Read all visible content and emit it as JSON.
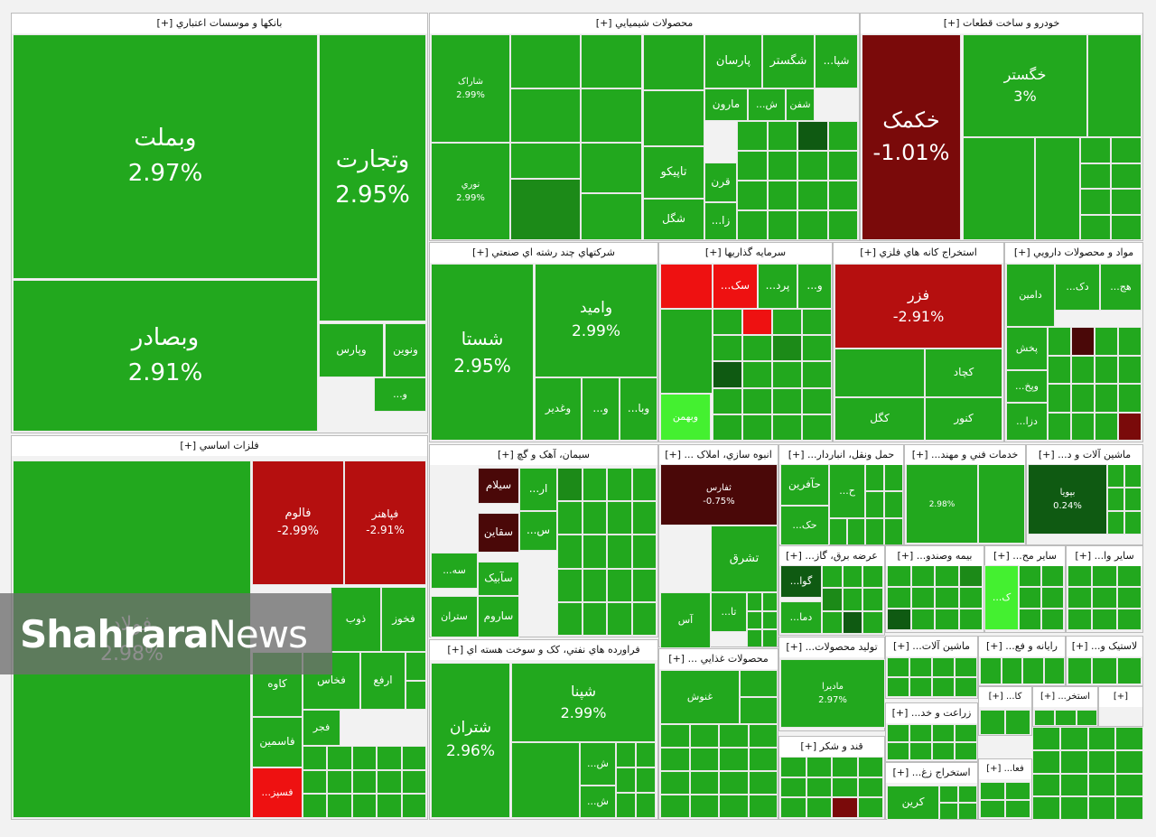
{
  "chart_data": {
    "type": "treemap",
    "colors": {
      "up": "#22a81e",
      "up_mid": "#1c8a18",
      "up_dark": "#0f5a12",
      "up_bright": "#44f030",
      "down": "#b50f0f",
      "down_dark": "#7a0a0a",
      "down_deep": "#4a0808",
      "down_bright": "#ee1111"
    },
    "sectors": [
      {
        "title": "بانکها و موسسات اعتباري [+]",
        "tiles": [
          {
            "name": "وبملت",
            "pct": "2.97%",
            "value": 2.97
          },
          {
            "name": "وتجارت",
            "pct": "2.95%",
            "value": 2.95
          },
          {
            "name": "وبصادر",
            "pct": "2.91%",
            "value": 2.91
          },
          {
            "name": "ونوين",
            "pct": ""
          },
          {
            "name": "وپارس",
            "pct": ""
          },
          {
            "name": "و...",
            "pct": ""
          }
        ]
      },
      {
        "title": "محصولات شيميايي [+]",
        "tiles": [
          {
            "name": "شاراک",
            "pct": "2.99%",
            "value": 2.99
          },
          {
            "name": "نوري",
            "pct": "2.99%",
            "value": 2.99
          },
          {
            "name": "پارسان",
            "pct": ""
          },
          {
            "name": "شگستر",
            "pct": ""
          },
          {
            "name": "شپا...",
            "pct": ""
          },
          {
            "name": "مارون",
            "pct": ""
          },
          {
            "name": "ش...",
            "pct": ""
          },
          {
            "name": "شفن",
            "pct": ""
          },
          {
            "name": "تاپيکو",
            "pct": ""
          },
          {
            "name": "قرن",
            "pct": ""
          },
          {
            "name": "شگل",
            "pct": ""
          },
          {
            "name": "زا...",
            "pct": ""
          }
        ]
      },
      {
        "title": "خودرو و ساخت قطعات [+]",
        "tiles": [
          {
            "name": "خکمک",
            "pct": "-1.01%",
            "value": -1.01
          },
          {
            "name": "خگستر",
            "pct": "3%",
            "value": 3
          }
        ]
      },
      {
        "title": "شرکتهاي چند رشته اي صنعتي [+]",
        "tiles": [
          {
            "name": "شستا",
            "pct": "2.95%",
            "value": 2.95
          },
          {
            "name": "واميد",
            "pct": "2.99%",
            "value": 2.99
          },
          {
            "name": "وغدير",
            "pct": ""
          },
          {
            "name": "و...",
            "pct": ""
          },
          {
            "name": "وبا...",
            "pct": ""
          }
        ]
      },
      {
        "title": "سرمايه گذاريها [+]",
        "tiles": [
          {
            "name": "سک...",
            "pct": ""
          },
          {
            "name": "پرد...",
            "pct": ""
          },
          {
            "name": "و...",
            "pct": ""
          },
          {
            "name": "وبهمن",
            "pct": ""
          }
        ]
      },
      {
        "title": "استخراج کانه هاي فلزي [+]",
        "tiles": [
          {
            "name": "فزر",
            "pct": "-2.91%",
            "value": -2.91
          },
          {
            "name": "کچاد",
            "pct": ""
          },
          {
            "name": "کنور",
            "pct": ""
          },
          {
            "name": "کگل",
            "pct": ""
          }
        ]
      },
      {
        "title": "مواد و محصولات دارويي [+]",
        "tiles": [
          {
            "name": "دامين",
            "pct": ""
          },
          {
            "name": "دک...",
            "pct": ""
          },
          {
            "name": "هج...",
            "pct": ""
          },
          {
            "name": "پخش",
            "pct": ""
          },
          {
            "name": "وپخ...",
            "pct": ""
          },
          {
            "name": "دزا...",
            "pct": ""
          }
        ]
      },
      {
        "title": "فلزات اساسي [+]",
        "tiles": [
          {
            "name": "فولاد",
            "pct": "2.98%",
            "value": 2.98
          },
          {
            "name": "فالوم",
            "pct": "-2.99%",
            "value": -2.99
          },
          {
            "name": "فپاهنر",
            "pct": "-2.91%",
            "value": -2.91
          },
          {
            "name": "ذوب",
            "pct": ""
          },
          {
            "name": "فخوز",
            "pct": ""
          },
          {
            "name": "کاوه",
            "pct": ""
          },
          {
            "name": "فخاس",
            "pct": ""
          },
          {
            "name": "ارفع",
            "pct": ""
          },
          {
            "name": "فاسمين",
            "pct": ""
          },
          {
            "name": "فجر",
            "pct": ""
          },
          {
            "name": "فسپز...",
            "pct": ""
          }
        ]
      },
      {
        "title": "سيمان، آهک و گچ [+]",
        "tiles": [
          {
            "name": "سيلام",
            "pct": ""
          },
          {
            "name": "ار...",
            "pct": ""
          },
          {
            "name": "سقاين",
            "pct": ""
          },
          {
            "name": "س...",
            "pct": ""
          },
          {
            "name": "سه...",
            "pct": ""
          },
          {
            "name": "سآبيک",
            "pct": ""
          },
          {
            "name": "ستران",
            "pct": ""
          },
          {
            "name": "ساروم",
            "pct": ""
          }
        ]
      },
      {
        "title": "انبوه سازي، املاک ... [+]",
        "tiles": [
          {
            "name": "ثفارس",
            "pct": "-0.75%",
            "value": -0.75
          },
          {
            "name": "تشرق",
            "pct": ""
          },
          {
            "name": "آس",
            "pct": ""
          },
          {
            "name": "تا...",
            "pct": ""
          }
        ]
      },
      {
        "title": "حمل ونقل، انباردار... [+]",
        "tiles": [
          {
            "name": "حآفرين",
            "pct": ""
          },
          {
            "name": "ح...",
            "pct": ""
          },
          {
            "name": "حک...",
            "pct": ""
          }
        ]
      },
      {
        "title": "خدمات فني و مهند... [+]",
        "tiles": [
          {
            "name": "",
            "pct": "2.98%",
            "value": 2.98
          }
        ]
      },
      {
        "title": "ماشين آلات و د... [+]",
        "tiles": [
          {
            "name": "بپويا",
            "pct": "0.24%",
            "value": 0.24
          }
        ]
      },
      {
        "title": "عرضه برق، گاز... [+]",
        "tiles": [
          {
            "name": "گوا...",
            "pct": ""
          },
          {
            "name": "دما...",
            "pct": ""
          }
        ]
      },
      {
        "title": "بيمه وصندو... [+]",
        "tiles": []
      },
      {
        "title": "ساير مح... [+]",
        "tiles": [
          {
            "name": "ک...",
            "pct": ""
          }
        ]
      },
      {
        "title": "ساير وا... [+]",
        "tiles": []
      },
      {
        "title": "فراورده هاي نفتي، کک و سوخت هسته اي [+]",
        "tiles": [
          {
            "name": "شتران",
            "pct": "2.96%",
            "value": 2.96
          },
          {
            "name": "شپنا",
            "pct": "2.99%",
            "value": 2.99
          },
          {
            "name": "ش...",
            "pct": ""
          },
          {
            "name": "ش...",
            "pct": ""
          }
        ]
      },
      {
        "title": "محصولات غذايي ... [+]",
        "tiles": [
          {
            "name": "غنوش",
            "pct": ""
          }
        ]
      },
      {
        "title": "توليد محصولات... [+]",
        "tiles": [
          {
            "name": "مادیرا",
            "pct": "2.97%",
            "value": 2.97
          }
        ]
      },
      {
        "title": "قند و شکر [+]",
        "tiles": []
      },
      {
        "title": "ماشين آلات... [+]",
        "tiles": []
      },
      {
        "title": "رايانه و فع... [+]",
        "tiles": []
      },
      {
        "title": "لاستيک و... [+]",
        "tiles": []
      },
      {
        "title": "زراعت و خد... [+]",
        "tiles": []
      },
      {
        "title": "کا... [+]",
        "tiles": []
      },
      {
        "title": "استخر... [+]",
        "tiles": []
      },
      {
        "title": "[+]",
        "tiles": []
      },
      {
        "title": "استخراج زغ... [+]",
        "tiles": [
          {
            "name": "کرين",
            "pct": ""
          }
        ]
      },
      {
        "title": "فعا... [+]",
        "tiles": []
      }
    ]
  },
  "watermark": {
    "part_a": "Shahrara",
    "part_b": "News"
  }
}
